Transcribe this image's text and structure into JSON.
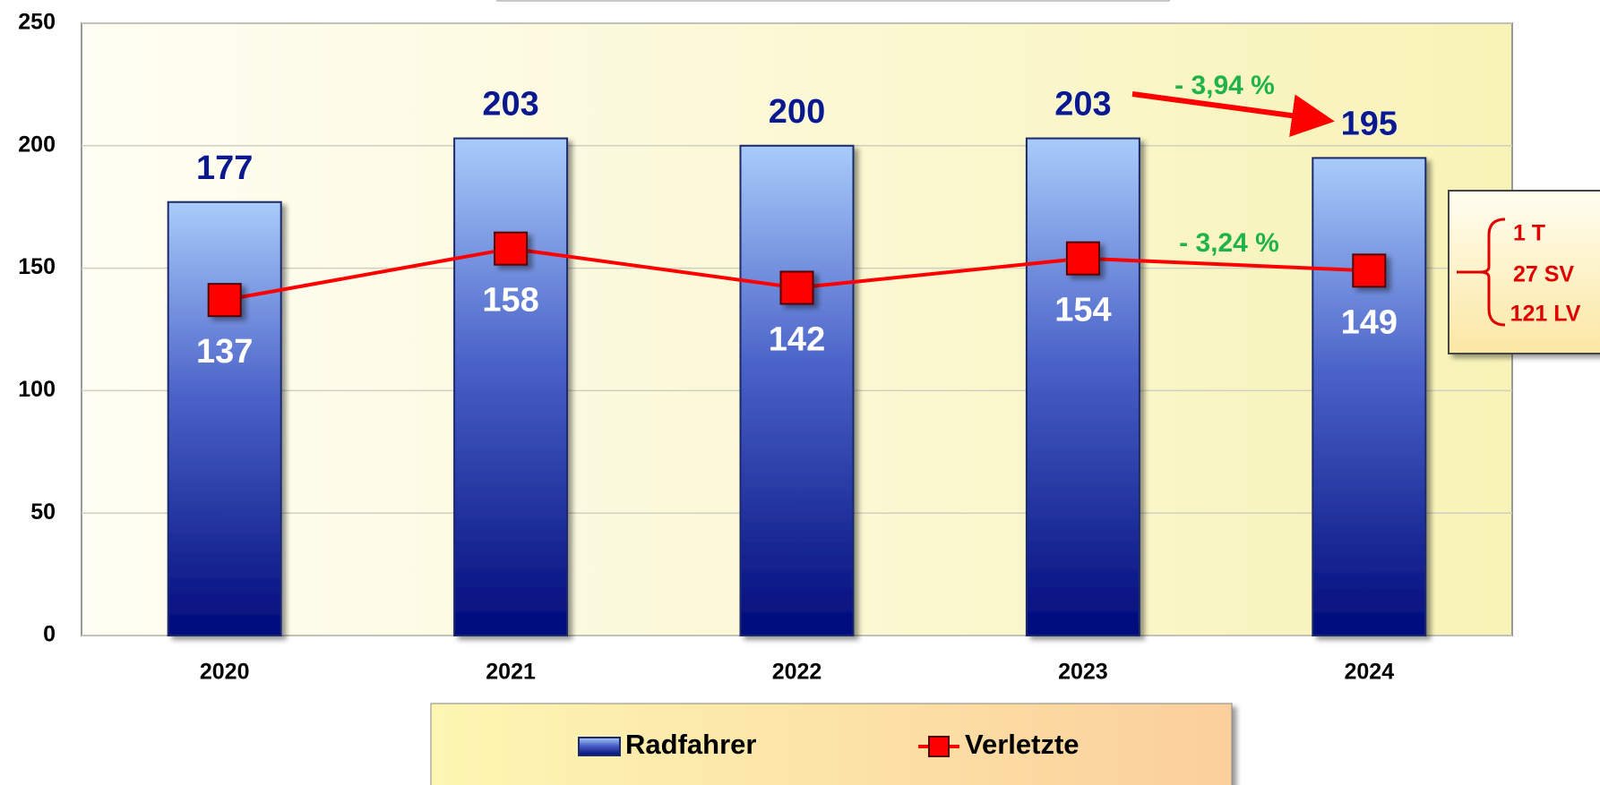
{
  "chart_data": {
    "type": "bar",
    "categories": [
      "2020",
      "2021",
      "2022",
      "2023",
      "2024"
    ],
    "series": [
      {
        "name": "Radfahrer",
        "type": "bar",
        "color": "#0a1a8c",
        "values": [
          177,
          203,
          200,
          203,
          195
        ]
      },
      {
        "name": "Verletzte",
        "type": "line",
        "color": "#ff0000",
        "values": [
          137,
          158,
          142,
          154,
          149
        ]
      }
    ],
    "ylim": [
      0,
      250
    ],
    "yticks": [
      0,
      50,
      100,
      150,
      200,
      250
    ],
    "grid": true,
    "legend": "bottom",
    "annotations": [
      "- 3,94 %",
      "- 3,24 %"
    ],
    "breakdown": [
      "1 T",
      "27 SV",
      "121 LV"
    ]
  }
}
